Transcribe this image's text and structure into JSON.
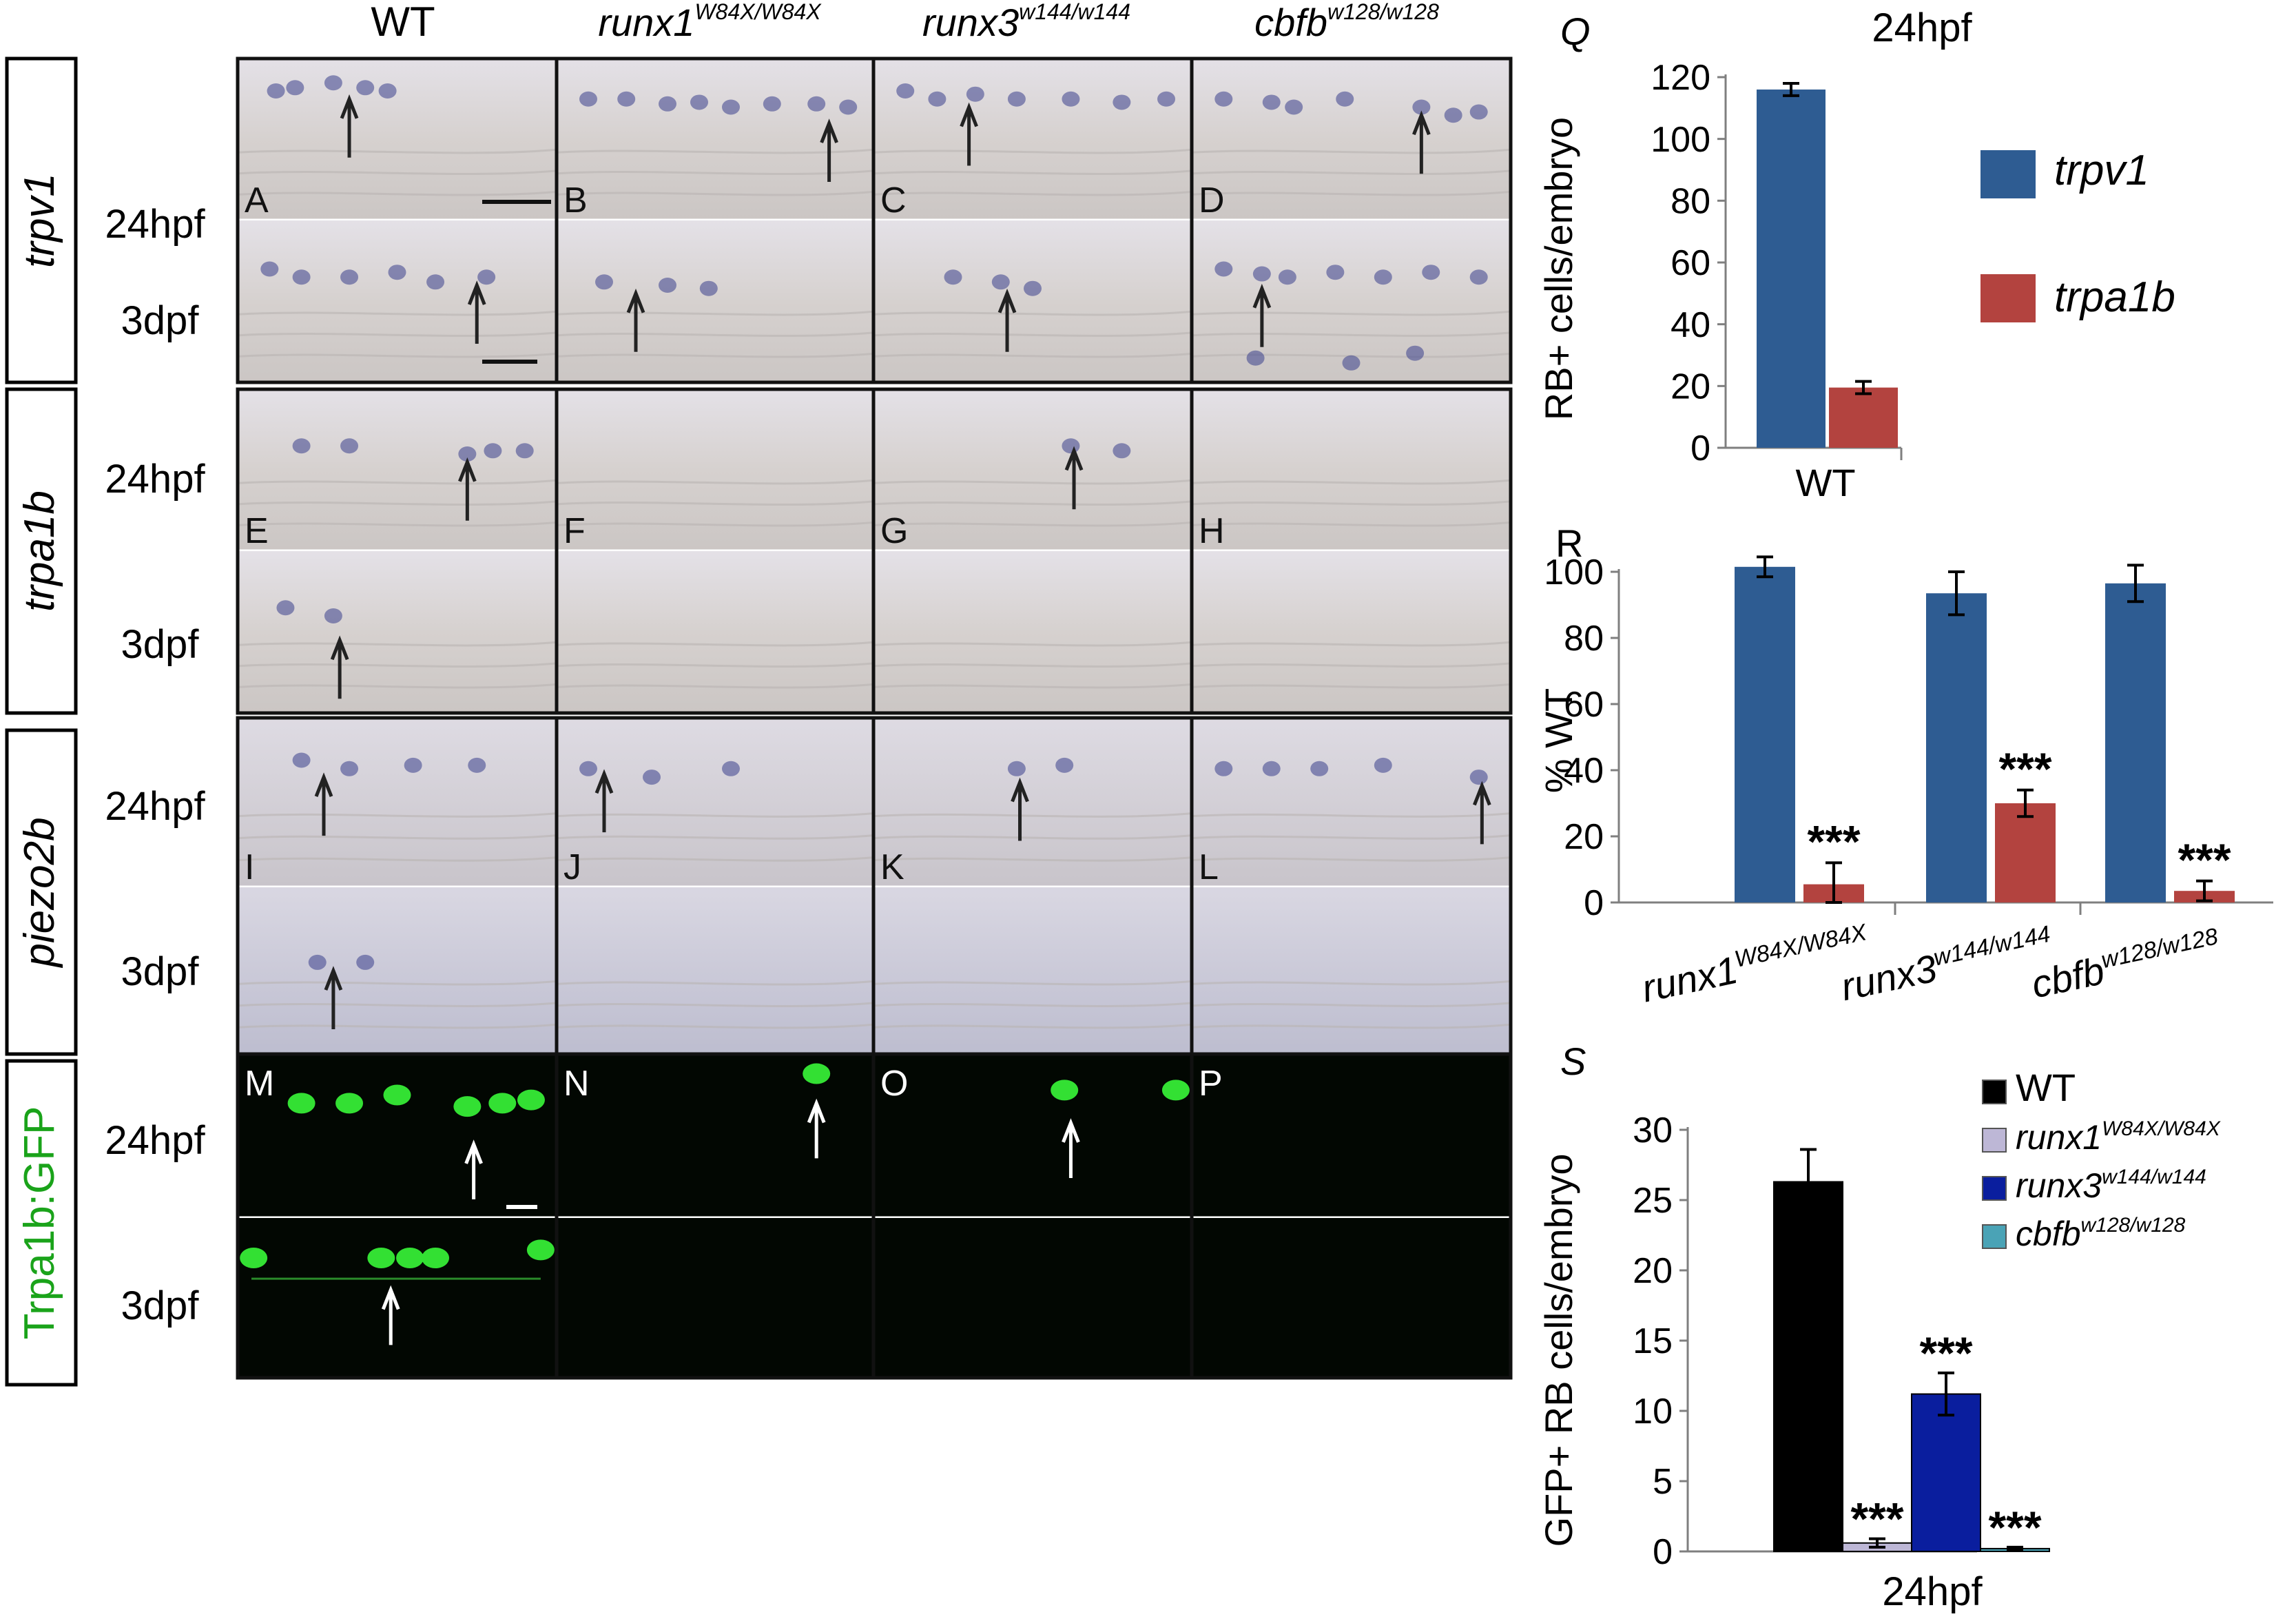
{
  "columns": [
    {
      "id": "wt",
      "label": "WT",
      "sup": ""
    },
    {
      "id": "runx1",
      "label": "runx1",
      "sup": "W84X/W84X"
    },
    {
      "id": "runx3",
      "label": "runx3",
      "sup": "w144/w144"
    },
    {
      "id": "cbfb",
      "label": "cbfb",
      "sup": "w128/w128"
    }
  ],
  "rows": [
    {
      "gene": "trpv1",
      "italic": true,
      "stages": [
        "24hpf",
        "3dpf"
      ],
      "letters": [
        "A",
        "B",
        "C",
        "D"
      ]
    },
    {
      "gene": "trpa1b",
      "italic": true,
      "stages": [
        "24hpf",
        "3dpf"
      ],
      "letters": [
        "E",
        "F",
        "G",
        "H"
      ]
    },
    {
      "gene": "piezo2b",
      "italic": true,
      "stages": [
        "24hpf",
        "3dpf"
      ],
      "letters": [
        "I",
        "J",
        "K",
        "L"
      ]
    },
    {
      "gene": "Trpa1b:GFP",
      "italic": false,
      "stages": [
        "24hpf",
        "3dpf"
      ],
      "letters": [
        "M",
        "N",
        "O",
        "P"
      ]
    }
  ],
  "colors": {
    "trpv1": "#2e5c92",
    "trpa1b": "#b3433f",
    "wt_black": "#000000",
    "runx1_lavender": "#bdb7d6",
    "runx3_blue": "#0a1e9e",
    "cbfb_teal": "#4aa3b6",
    "gfp_green": "#1aa31a"
  },
  "panel_q": {
    "letter": "Q",
    "title": "24hpf"
  },
  "panel_r": {
    "letter": "R"
  },
  "panel_s": {
    "letter": "S"
  },
  "chart_data": [
    {
      "type": "bar",
      "panel": "Q",
      "title": "24hpf",
      "categories": [
        "WT"
      ],
      "series": [
        {
          "name": "trpv1",
          "values": [
            116
          ],
          "err": [
            2
          ]
        },
        {
          "name": "trpa1b",
          "values": [
            19.5
          ],
          "err": [
            2
          ]
        }
      ],
      "ylabel": "RB+ cells/embryo",
      "xlabel": "",
      "ylim": [
        0,
        120
      ],
      "yticks": [
        0,
        20,
        40,
        60,
        80,
        100,
        120
      ],
      "legend": "right"
    },
    {
      "type": "bar",
      "panel": "R",
      "categories": [
        "runx1W84X/W84X",
        "runx3w144/w144",
        "cbfbw128/w128"
      ],
      "category_labels": [
        {
          "base": "runx1",
          "sup": "W84X/W84X"
        },
        {
          "base": "runx3",
          "sup": "w144/w144"
        },
        {
          "base": "cbfb",
          "sup": "w128/w128"
        }
      ],
      "series": [
        {
          "name": "trpv1",
          "values": [
            101.5,
            93.5,
            96.5
          ],
          "err": [
            3,
            6.5,
            5.5
          ],
          "sig": [
            "",
            "",
            ""
          ]
        },
        {
          "name": "trpa1b",
          "values": [
            5.5,
            30,
            3.5
          ],
          "err": [
            6.5,
            4,
            3
          ],
          "sig": [
            "***",
            "***",
            "***"
          ]
        }
      ],
      "ylabel": "% WT",
      "ylim": [
        0,
        100
      ],
      "yticks": [
        0,
        20,
        40,
        60,
        80,
        100
      ]
    },
    {
      "type": "bar",
      "panel": "S",
      "categories": [
        "24hpf"
      ],
      "series": [
        {
          "name": "WT",
          "values": [
            26.3
          ],
          "err": [
            2.3
          ],
          "sig": ""
        },
        {
          "name": "runx1",
          "sup": "W84X/W84X",
          "values": [
            0.6
          ],
          "err": [
            0.3
          ],
          "sig": "***"
        },
        {
          "name": "runx3",
          "sup": "w144/w144",
          "values": [
            11.2
          ],
          "err": [
            1.5
          ],
          "sig": "***"
        },
        {
          "name": "cbfb",
          "sup": "w128/w128",
          "values": [
            0.2
          ],
          "err": [
            0.1
          ],
          "sig": "***"
        }
      ],
      "ylabel": "GFP+ RB cells/embryo",
      "xlabel": "24hpf",
      "ylim": [
        0,
        30
      ],
      "yticks": [
        0,
        5,
        10,
        15,
        20,
        25,
        30
      ],
      "legend": "top-right"
    }
  ]
}
